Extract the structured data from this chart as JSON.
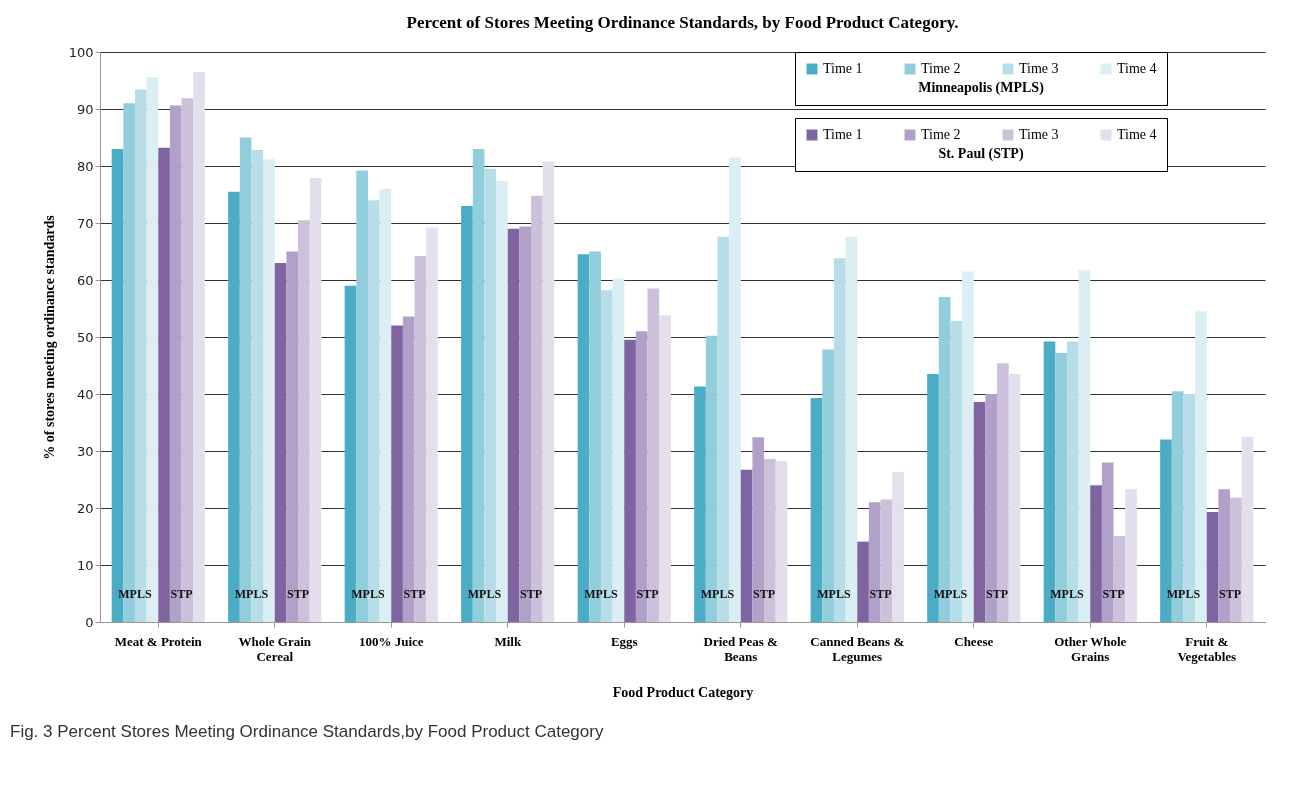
{
  "chart_data": {
    "type": "bar",
    "title": "Percent of Stores Meeting Ordinance Standards, by Food Product Category.",
    "xlabel": "Food Product Category",
    "ylabel": "% of stores meeting ordinance standards",
    "legend_title": [
      "Minneapolis (MPLS)",
      "St. Paul (STP)"
    ],
    "categories": [
      "Meat & Protein",
      "Whole Grain Cereal",
      "100% Juice",
      "Milk",
      "Eggs",
      "Dried Peas & Beans",
      "Canned Beans & Legumes",
      "Cheese",
      "Other Whole Grains",
      "Fruit & Vegetables"
    ],
    "series": [
      {
        "name": "Time 1",
        "color": "#4bacc6",
        "values": [
          83,
          75.5,
          59,
          73,
          64.5,
          41.3,
          39.3,
          43.5,
          49.2,
          32
        ]
      },
      {
        "name": "Time 2",
        "color": "#92cddc",
        "values": [
          91,
          85,
          79.2,
          83,
          65,
          50.2,
          47.8,
          57,
          47.2,
          40.5
        ]
      },
      {
        "name": "Time 3",
        "color": "#b7dee8",
        "values": [
          93.4,
          82.8,
          74,
          79.5,
          58.2,
          67.6,
          63.8,
          52.8,
          49.2,
          40
        ]
      },
      {
        "name": "Time 4",
        "color": "#daeef3",
        "values": [
          95.6,
          81.2,
          76,
          77.4,
          60.3,
          81.5,
          67.6,
          61.5,
          61.7,
          54.5
        ]
      },
      {
        "name": "Time 1",
        "color": "#8064a2",
        "values": [
          83.2,
          63,
          52,
          69,
          49.5,
          26.7,
          14.1,
          38.6,
          24,
          19.3
        ]
      },
      {
        "name": "Time 2",
        "color": "#b1a0c7",
        "values": [
          90.6,
          65,
          53.6,
          69.4,
          51,
          32.4,
          21,
          40,
          28,
          23.3
        ]
      },
      {
        "name": "Time 3",
        "color": "#ccc0da",
        "values": [
          91.9,
          70.5,
          64.2,
          74.8,
          58.5,
          28.6,
          21.5,
          45.4,
          15.1,
          21.8
        ]
      },
      {
        "name": "Time 4",
        "color": "#e4dfec",
        "values": [
          96.5,
          77.9,
          69.2,
          80.8,
          53.8,
          28.3,
          26.3,
          43.5,
          23.3,
          32.5
        ]
      }
    ],
    "ylim": [
      0,
      100
    ],
    "yticks": [
      0,
      10,
      20,
      30,
      40,
      50,
      60,
      70,
      80,
      90,
      100
    ],
    "grid": "y",
    "legend": "top right",
    "annotations": [
      {
        "text": "MPLS",
        "x": "Meat & Protein",
        "y": 5
      },
      {
        "text": "STP",
        "x": "Meat & Protein",
        "y": 5
      },
      {
        "text": "MPLS",
        "x": "Whole Grain Cereal",
        "y": 5
      },
      {
        "text": "STP",
        "x": "Whole Grain Cereal",
        "y": 5
      },
      {
        "text": "MPLS",
        "x": "100% Juice",
        "y": 5
      },
      {
        "text": "STP",
        "x": "100% Juice",
        "y": 5
      },
      {
        "text": "MPLS",
        "x": "Milk",
        "y": 5
      },
      {
        "text": "STP",
        "x": "Milk",
        "y": 5
      },
      {
        "text": "MPLS",
        "x": "Eggs",
        "y": 5
      },
      {
        "text": "STP",
        "x": "Eggs",
        "y": 5
      },
      {
        "text": "MPLS",
        "x": "Dried Peas & Beans",
        "y": 5
      },
      {
        "text": "STP",
        "x": "Dried Peas & Beans",
        "y": 5
      },
      {
        "text": "MPLS",
        "x": "Canned Beans & Legumes",
        "y": 5
      },
      {
        "text": "STP",
        "x": "Canned Beans & Legumes",
        "y": 5
      },
      {
        "text": "MPLS",
        "x": "Cheese",
        "y": 5
      },
      {
        "text": "STP",
        "x": "Cheese",
        "y": 5
      },
      {
        "text": "MPLS",
        "x": "Other Whole Grains",
        "y": 5
      },
      {
        "text": "STP",
        "x": "Other Whole Grains",
        "y": 5
      },
      {
        "text": "MPLS",
        "x": "Fruit & Vegetables",
        "y": 5
      },
      {
        "text": "STP",
        "x": "Fruit & Vegetables",
        "y": 5
      },
      "Fig. 3 Percent Stores Meeting Ordinance Standards,by Food Product Category"
    ]
  }
}
